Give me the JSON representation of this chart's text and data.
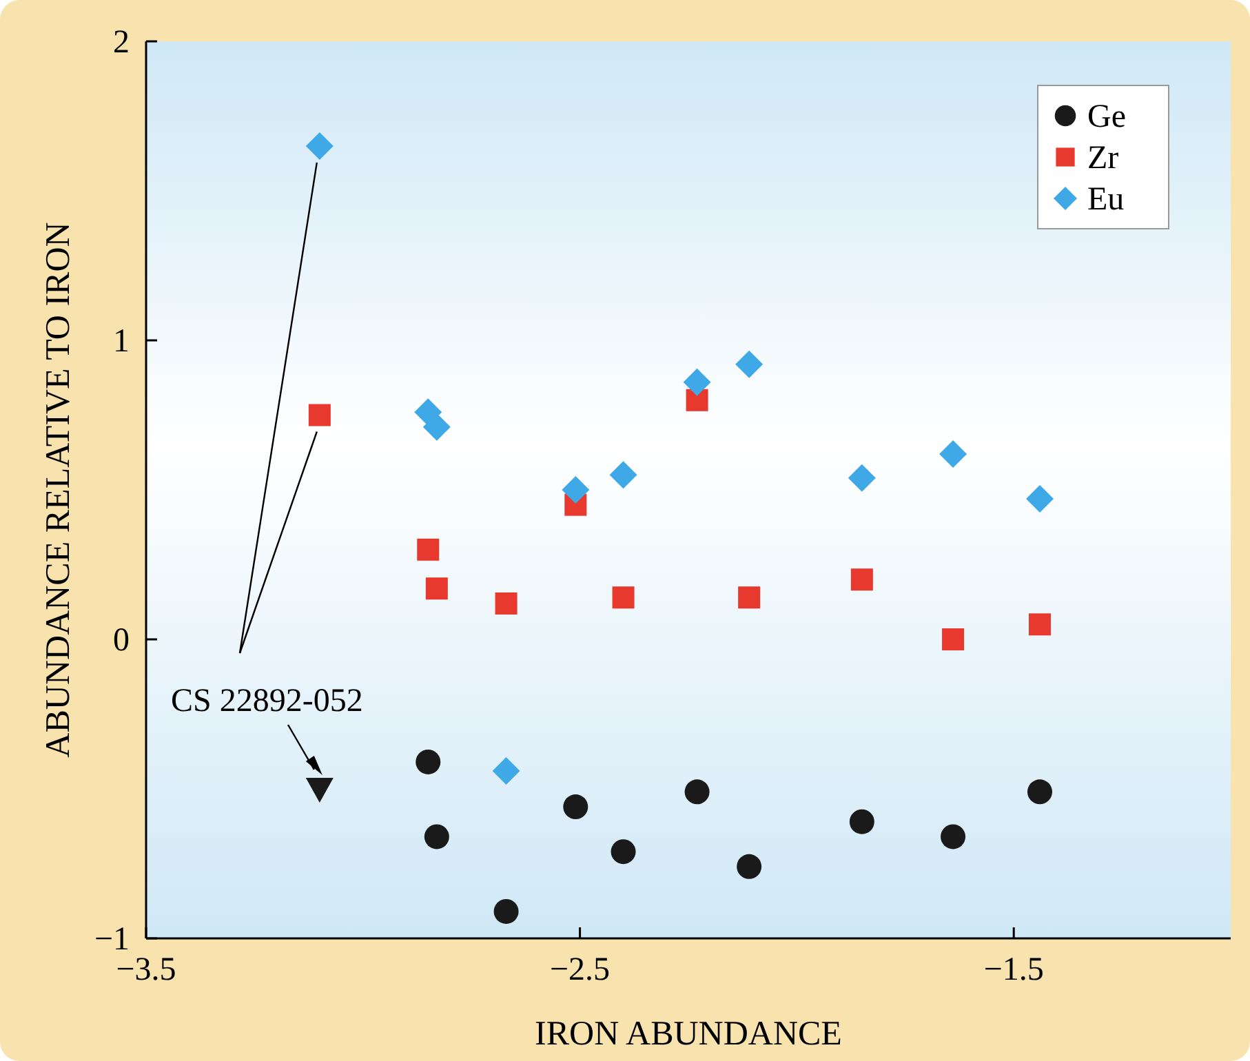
{
  "chart_data": {
    "type": "scatter",
    "xlabel": "IRON ABUNDANCE",
    "ylabel": "ABUNDANCE RELATIVE TO IRON",
    "xlim": [
      -3.5,
      -1.0
    ],
    "ylim": [
      -1,
      2
    ],
    "xticks": [
      {
        "value": -3.5,
        "label": "−3.5"
      },
      {
        "value": -2.5,
        "label": "−2.5"
      },
      {
        "value": -1.5,
        "label": "−1.5"
      }
    ],
    "yticks": [
      {
        "value": -1,
        "label": "−1"
      },
      0,
      1,
      2
    ],
    "grid": false,
    "legend": "top right",
    "annotations": [
      {
        "text": "CS 22892-052",
        "x": -3.1,
        "y": -0.5
      }
    ],
    "series": [
      {
        "name": "Ge",
        "color": "#1a1a1a",
        "marker": "circle",
        "x": [
          -2.85,
          -2.83,
          -2.67,
          -2.51,
          -2.4,
          -2.23,
          -2.11,
          -1.85,
          -1.64,
          -1.44
        ],
        "values": [
          -0.41,
          -0.66,
          -0.91,
          -0.56,
          -0.71,
          -0.51,
          -0.76,
          -0.61,
          -0.66,
          -0.51
        ]
      },
      {
        "name": "Zr",
        "color": "#e8392f",
        "marker": "square",
        "x": [
          -3.1,
          -2.85,
          -2.83,
          -2.67,
          -2.51,
          -2.4,
          -2.23,
          -2.11,
          -1.85,
          -1.64,
          -1.44
        ],
        "values": [
          0.75,
          0.3,
          0.17,
          0.12,
          0.45,
          0.14,
          0.8,
          0.14,
          0.2,
          0.0,
          0.05
        ]
      },
      {
        "name": "Eu",
        "color": "#3fa9e8",
        "marker": "diamond",
        "x": [
          -3.1,
          -2.85,
          -2.83,
          -2.67,
          -2.51,
          -2.4,
          -2.23,
          -2.11,
          -1.85,
          -1.64,
          -1.44
        ],
        "values": [
          1.65,
          0.76,
          0.71,
          -0.44,
          0.5,
          0.55,
          0.86,
          0.92,
          0.54,
          0.62,
          0.47
        ]
      },
      {
        "color": "#1a1a1a",
        "marker": "triangle",
        "x": [
          -3.1
        ],
        "values": [
          -0.5
        ]
      }
    ]
  }
}
